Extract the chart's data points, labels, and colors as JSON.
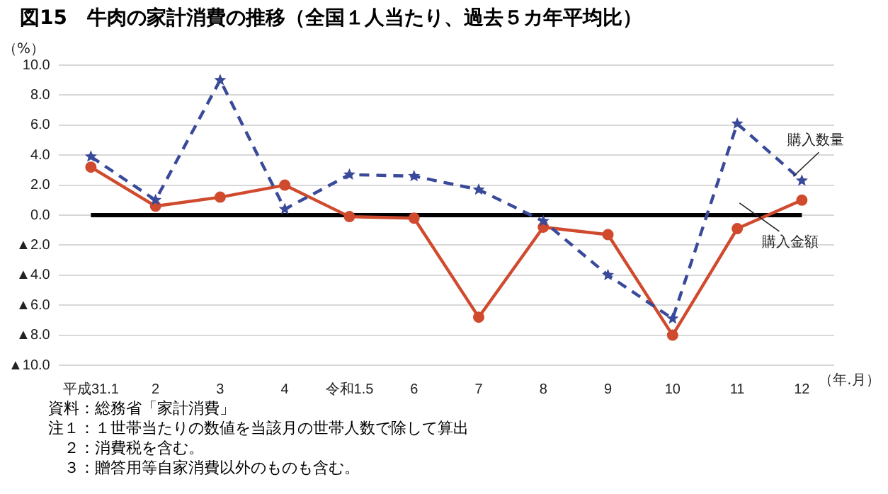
{
  "chart_data": {
    "type": "line",
    "title": "図15　牛肉の家計消費の推移（全国１人当たり、過去５カ年平均比）",
    "ylabel": "（%）",
    "xlabel": "（年.月）",
    "categories": [
      "平成31.1",
      "2",
      "3",
      "4",
      "令和1.5",
      "6",
      "7",
      "8",
      "9",
      "10",
      "11",
      "12"
    ],
    "series": [
      {
        "name": "購入数量",
        "color": "#3a4a9a",
        "marker": "star",
        "line_style": "dashed",
        "values": [
          3.9,
          1.0,
          9.0,
          0.4,
          2.7,
          2.6,
          1.7,
          -0.4,
          -4.0,
          -6.9,
          6.1,
          2.3
        ]
      },
      {
        "name": "購入金額",
        "color": "#d04a2e",
        "marker": "circle",
        "line_style": "solid",
        "values": [
          3.2,
          0.6,
          1.2,
          2.0,
          -0.1,
          -0.2,
          -6.8,
          -0.8,
          -1.3,
          -8.0,
          -0.9,
          1.0
        ]
      }
    ],
    "ylim": [
      -10,
      10
    ],
    "yticks": [
      {
        "value": -10,
        "label": "▲10.0"
      },
      {
        "value": -8,
        "label": "▲8.0"
      },
      {
        "value": -6,
        "label": "▲6.0"
      },
      {
        "value": -4,
        "label": "▲4.0"
      },
      {
        "value": -2,
        "label": "▲2.0"
      },
      {
        "value": 0,
        "label": "0.0"
      },
      {
        "value": 2,
        "label": "2.0"
      },
      {
        "value": 4,
        "label": "4.0"
      },
      {
        "value": 6,
        "label": "6.0"
      },
      {
        "value": 8,
        "label": "8.0"
      },
      {
        "value": 10,
        "label": "10.0"
      }
    ],
    "grid": "y",
    "legend": false,
    "ref_lines": [
      {
        "axis": "y",
        "value": 0,
        "color": "#000000"
      }
    ],
    "annotations": [
      "資料：総務省「家計消費」",
      "注１：１世帯当たりの数値を当該月の世帯人数で除して算出",
      "　２：消費税を含む。",
      "　３：贈答用等自家消費以外のものも含む。"
    ]
  }
}
